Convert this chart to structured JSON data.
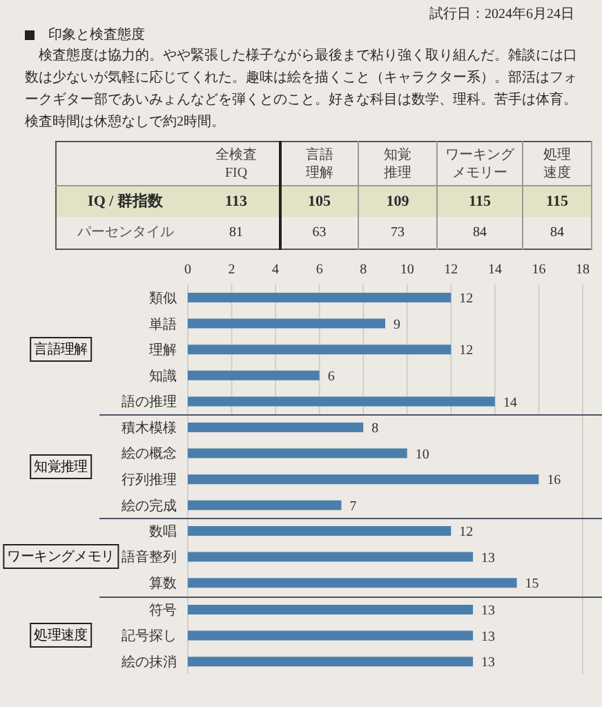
{
  "chart_data": [
    {
      "type": "other",
      "title": "印象と検査態度",
      "annotations": [
        "試行日：2024年6月24日",
        "検査態度は協力的。やや緊張した様子ながら最後まで粘り強く取り組んだ。雑談には口数は少ないが気軽に応じてくれた。趣味は絵を描くこと（キャラクター系）。部活はフォークギター部であいみょんなどを弾くとのこと。好きな科目は数学、理科。苦手は体育。検査時間は休憩なしで約2時間。"
      ],
      "categories": [
        "全検査 FIQ",
        "言語理解",
        "知覚推理",
        "ワーキングメモリー",
        "処理速度"
      ],
      "series": [
        {
          "name": "IQ / 群指数",
          "color": "#e2e3c6",
          "values": [
            113,
            105,
            109,
            115,
            115
          ]
        },
        {
          "name": "パーセンタイル",
          "values": [
            81,
            63,
            73,
            84,
            84
          ]
        }
      ],
      "data_labels": true
    },
    {
      "type": "bar",
      "orientation": "horizontal",
      "ylabel": "言語理解",
      "categories": [
        "類似",
        "単語",
        "理解",
        "知識",
        "語の推理"
      ],
      "values": [
        12,
        9,
        12,
        6,
        14
      ],
      "color": "#4a7fad",
      "xlim": [
        0,
        18
      ],
      "xticks": [
        0,
        2,
        4,
        6,
        8,
        10,
        12,
        14,
        16,
        18
      ],
      "grid": "x",
      "data_labels": true
    },
    {
      "type": "bar",
      "orientation": "horizontal",
      "ylabel": "知覚推理",
      "categories": [
        "積木模様",
        "絵の概念",
        "行列推理",
        "絵の完成"
      ],
      "values": [
        8,
        10,
        16,
        7
      ],
      "color": "#4a7fad",
      "xlim": [
        0,
        18
      ],
      "xticks": [
        0,
        2,
        4,
        6,
        8,
        10,
        12,
        14,
        16,
        18
      ],
      "grid": "x",
      "data_labels": true,
      "tick_labels": "y"
    },
    {
      "type": "bar",
      "orientation": "horizontal",
      "ylabel": "ワーキングメモリ",
      "categories": [
        "数唱",
        "語音整列",
        "算数"
      ],
      "values": [
        12,
        13,
        15
      ],
      "color": "#4a7fad",
      "xlim": [
        0,
        18
      ],
      "xticks": [
        0,
        2,
        4,
        6,
        8,
        10,
        12,
        14,
        16,
        18
      ],
      "grid": "x",
      "data_labels": true,
      "tick_labels": "y"
    },
    {
      "type": "bar",
      "orientation": "horizontal",
      "ylabel": "処理速度",
      "categories": [
        "符号",
        "記号探し",
        "絵の抹消"
      ],
      "values": [
        13,
        13,
        13
      ],
      "color": "#4a7fad",
      "xlim": [
        0,
        18
      ],
      "xticks": [
        0,
        2,
        4,
        6,
        8,
        10,
        12,
        14,
        16,
        18
      ],
      "grid": "x",
      "data_labels": true,
      "tick_labels": "y"
    }
  ]
}
